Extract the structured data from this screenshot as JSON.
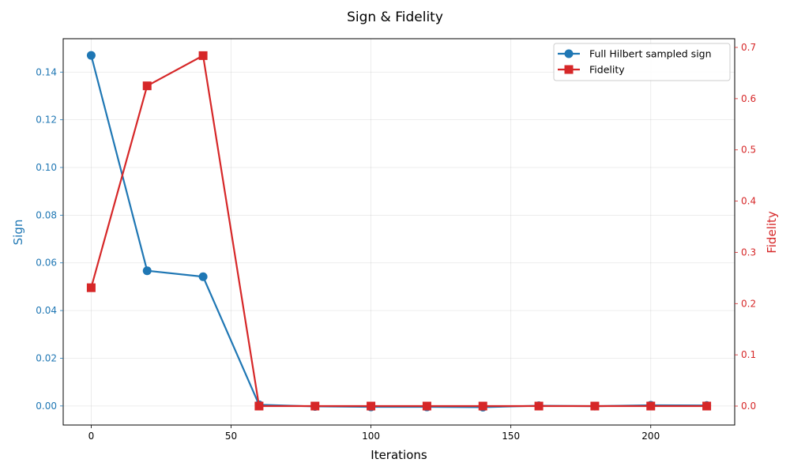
{
  "chart_data": {
    "type": "line",
    "title": "Sign & Fidelity",
    "xlabel": "Iterations",
    "ylabel_left": "Sign",
    "ylabel_right": "Fidelity",
    "xlim": [
      -10,
      230
    ],
    "ylim_left": [
      -0.008,
      0.154
    ],
    "ylim_right": [
      -0.037,
      0.717
    ],
    "x_ticks": [
      0,
      50,
      100,
      150,
      200
    ],
    "y_ticks_left": [
      0.0,
      0.02,
      0.04,
      0.06,
      0.08,
      0.1,
      0.12,
      0.14
    ],
    "y_ticks_right": [
      0.0,
      0.1,
      0.2,
      0.3,
      0.4,
      0.5,
      0.6,
      0.7
    ],
    "y_tick_labels_left": [
      "0.00",
      "0.02",
      "0.04",
      "0.06",
      "0.08",
      "0.10",
      "0.12",
      "0.14"
    ],
    "y_tick_labels_right": [
      "0.0",
      "0.1",
      "0.2",
      "0.3",
      "0.4",
      "0.5",
      "0.6",
      "0.7"
    ],
    "x_tick_labels": [
      "0",
      "50",
      "100",
      "150",
      "200"
    ],
    "grid": true,
    "legend_position": "top-right",
    "x": [
      0,
      20,
      40,
      60,
      80,
      100,
      120,
      140,
      160,
      180,
      200,
      220
    ],
    "series": [
      {
        "name": "Full Hilbert sampled sign",
        "axis": "left",
        "marker": "circle",
        "color": "#1f77b4",
        "values": [
          0.147,
          0.0567,
          0.0542,
          0.0005,
          -0.0002,
          -0.0004,
          -0.0004,
          -0.0005,
          0.0001,
          -0.0001,
          0.0003,
          0.0002
        ]
      },
      {
        "name": "Fidelity",
        "axis": "right",
        "marker": "square",
        "color": "#d62728",
        "values": [
          0.231,
          0.625,
          0.684,
          0.0,
          0.0,
          0.0,
          0.0,
          0.0,
          0.0,
          0.0,
          0.0,
          0.0
        ]
      }
    ]
  }
}
